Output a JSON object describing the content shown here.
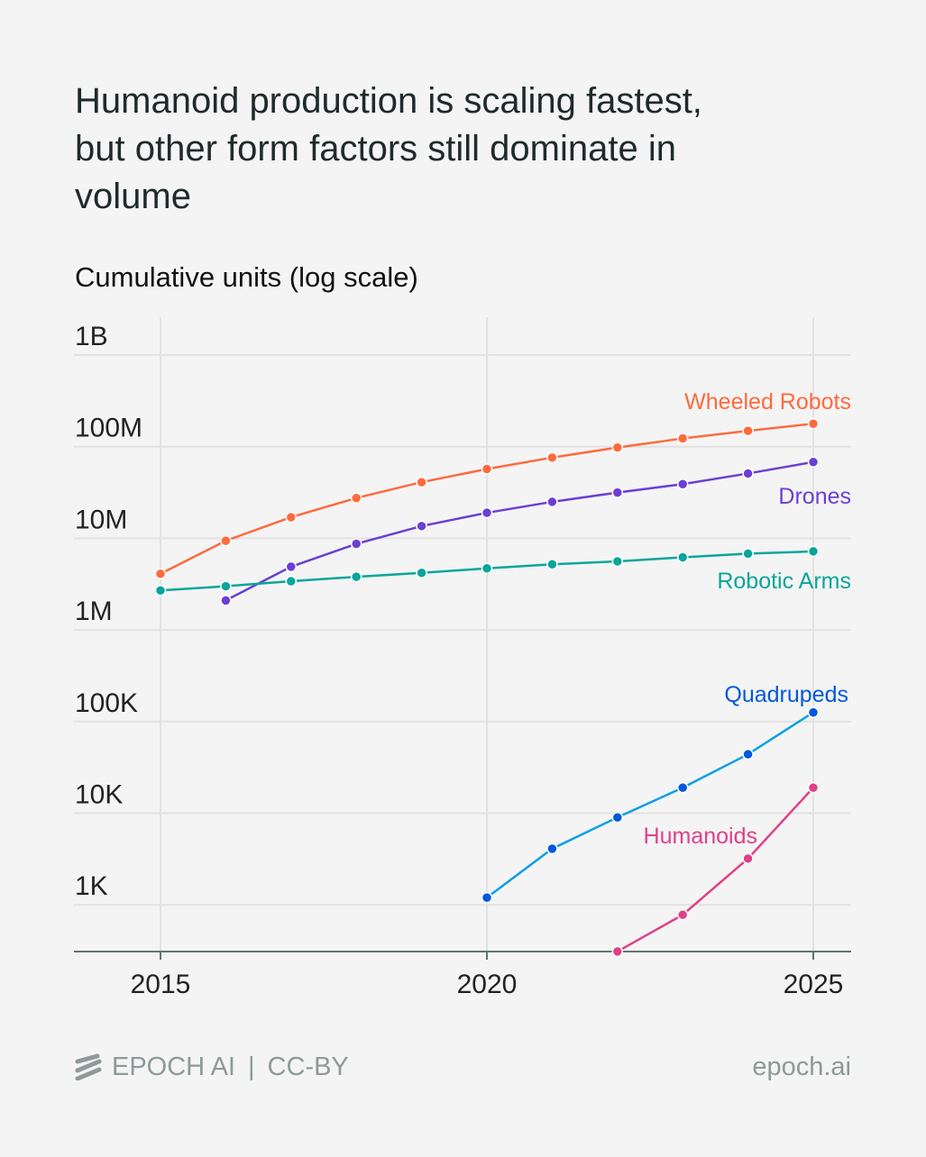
{
  "title": "Humanoid production is scaling fastest, but other form factors still dominate in volume",
  "footer": {
    "brand": "EPOCH AI",
    "license": "CC-BY",
    "site": "epoch.ai"
  },
  "chart_data": {
    "type": "line",
    "title": "Humanoid production is scaling fastest, but other form factors still dominate in volume",
    "ylabel": "Cumulative units (log scale)",
    "xlabel": "",
    "yscale": "log",
    "ylim": [
      300,
      2500000000
    ],
    "xlim": [
      2013.7,
      2025.6
    ],
    "x_ticks": [
      2015,
      2020,
      2025
    ],
    "y_ticks": [
      {
        "value": 1000,
        "label": "1K"
      },
      {
        "value": 10000,
        "label": "10K"
      },
      {
        "value": 100000,
        "label": "100K"
      },
      {
        "value": 1000000,
        "label": "1M"
      },
      {
        "value": 10000000,
        "label": "10M"
      },
      {
        "value": 100000000,
        "label": "100M"
      },
      {
        "value": 1000000000,
        "label": "1B"
      }
    ],
    "grid": true,
    "legend": "direct labels at line ends",
    "series": [
      {
        "name": "Wheeled Robots",
        "color": "#ff6a3d",
        "marker_color": "#ff6a3d",
        "x": [
          2015,
          2016,
          2017,
          2018,
          2019,
          2020,
          2021,
          2022,
          2023,
          2024,
          2025
        ],
        "y": [
          4100000,
          9400000,
          17000000,
          27500000,
          41000000,
          57000000,
          76000000,
          98000000,
          123000000,
          149000000,
          178000000
        ]
      },
      {
        "name": "Drones",
        "color": "#6b3fd4",
        "marker_color": "#6b3fd4",
        "x": [
          2016,
          2017,
          2018,
          2019,
          2020,
          2021,
          2022,
          2023,
          2024,
          2025
        ],
        "y": [
          2100000,
          4900000,
          8700000,
          13600000,
          19000000,
          25000000,
          31600000,
          39000000,
          51000000,
          68000000
        ]
      },
      {
        "name": "Robotic Arms",
        "color": "#0aa59b",
        "marker_color": "#0aa59b",
        "x": [
          2015,
          2016,
          2017,
          2018,
          2019,
          2020,
          2021,
          2022,
          2023,
          2024,
          2025
        ],
        "y": [
          2700000,
          3000000,
          3400000,
          3800000,
          4200000,
          4700000,
          5200000,
          5600000,
          6200000,
          6800000,
          7200000
        ]
      },
      {
        "name": "Quadrupeds",
        "color": "#0aa0e8",
        "marker_color": "#0058dd",
        "x": [
          2020,
          2021,
          2022,
          2023,
          2024,
          2025
        ],
        "y": [
          1200,
          4100,
          9000,
          19000,
          44000,
          126000
        ]
      },
      {
        "name": "Humanoids",
        "color": "#e0408a",
        "marker_color": "#e0408a",
        "x": [
          2022,
          2023,
          2024,
          2025
        ],
        "y": [
          310,
          780,
          3200,
          19000
        ]
      }
    ]
  }
}
